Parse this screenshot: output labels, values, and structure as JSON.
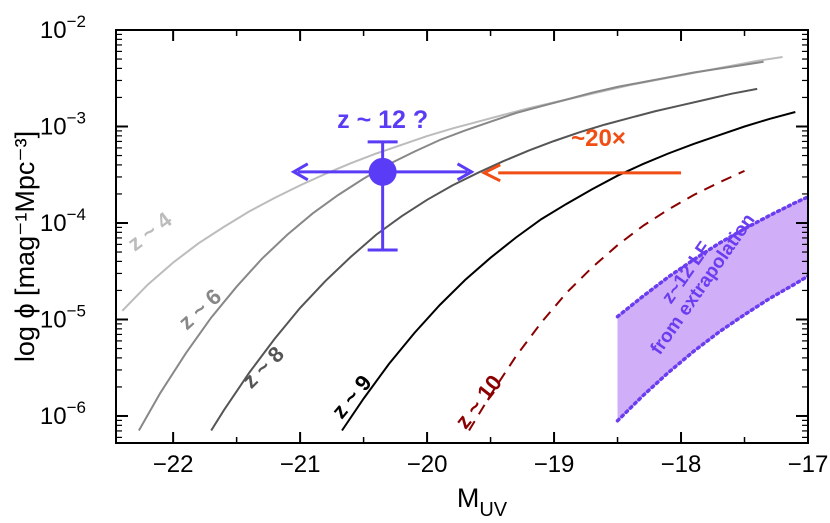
{
  "chart_data": {
    "type": "line",
    "title": "",
    "xlabel": "M",
    "xlabel_sub": "UV",
    "ylabel": "log ϕ [mag⁻¹Mpc⁻³]",
    "xlim": [
      -22.45,
      -17.0
    ],
    "ylim_log10": [
      -6.28,
      -2.0
    ],
    "y_log_scale": true,
    "grid": false,
    "legend": "none",
    "x_ticks": [
      {
        "value": -22,
        "label": "−22"
      },
      {
        "value": -21,
        "label": "−21"
      },
      {
        "value": -20,
        "label": "−20"
      },
      {
        "value": -19,
        "label": "−19"
      },
      {
        "value": -18,
        "label": "−18"
      },
      {
        "value": -17,
        "label": "−17"
      }
    ],
    "y_ticks": [
      {
        "exp": -2,
        "base": "10",
        "sup": "−2"
      },
      {
        "exp": -3,
        "base": "10",
        "sup": "−3"
      },
      {
        "exp": -4,
        "base": "10",
        "sup": "−4"
      },
      {
        "exp": -5,
        "base": "10",
        "sup": "−5"
      },
      {
        "exp": -6,
        "base": "10",
        "sup": "−6"
      }
    ],
    "series": [
      {
        "id": "z4",
        "label": "z ~ 4",
        "color": "#bcbcbc",
        "dash": "solid",
        "label_x": -22.15,
        "label_logy": -4.15,
        "label_angle": -37,
        "x": [
          -22.4,
          -22.2,
          -22.0,
          -21.8,
          -21.6,
          -21.4,
          -21.2,
          -21.0,
          -20.8,
          -20.6,
          -20.4,
          -20.2,
          -20.0,
          -19.8,
          -19.6,
          -19.4,
          -19.2,
          -19.0,
          -18.8,
          -18.6,
          -18.4,
          -18.2,
          -18.0,
          -17.8,
          -17.6,
          -17.4,
          -17.2
        ],
        "logy": [
          -4.91,
          -4.64,
          -4.41,
          -4.21,
          -4.04,
          -3.88,
          -3.74,
          -3.61,
          -3.49,
          -3.38,
          -3.28,
          -3.19,
          -3.1,
          -3.02,
          -2.95,
          -2.88,
          -2.81,
          -2.75,
          -2.69,
          -2.63,
          -2.57,
          -2.52,
          -2.47,
          -2.42,
          -2.37,
          -2.32,
          -2.28
        ]
      },
      {
        "id": "z6",
        "label": "z ~ 6",
        "color": "#888888",
        "dash": "solid",
        "label_x": -21.75,
        "label_logy": -4.95,
        "label_angle": -42,
        "x": [
          -22.27,
          -22.1,
          -21.9,
          -21.7,
          -21.5,
          -21.3,
          -21.1,
          -20.9,
          -20.7,
          -20.5,
          -20.3,
          -20.1,
          -19.9,
          -19.7,
          -19.5,
          -19.3,
          -19.1,
          -18.9,
          -18.7,
          -18.5,
          -18.3,
          -18.1,
          -17.9,
          -17.7,
          -17.5,
          -17.35
        ],
        "logy": [
          -6.15,
          -5.76,
          -5.35,
          -4.98,
          -4.66,
          -4.37,
          -4.12,
          -3.9,
          -3.71,
          -3.54,
          -3.39,
          -3.26,
          -3.14,
          -3.04,
          -2.95,
          -2.86,
          -2.79,
          -2.72,
          -2.65,
          -2.59,
          -2.54,
          -2.49,
          -2.44,
          -2.4,
          -2.36,
          -2.33
        ]
      },
      {
        "id": "z8",
        "label": "z ~ 8",
        "color": "#555555",
        "dash": "solid",
        "label_x": -21.25,
        "label_logy": -5.55,
        "label_angle": -45,
        "x": [
          -21.7,
          -21.6,
          -21.4,
          -21.2,
          -21.0,
          -20.8,
          -20.6,
          -20.4,
          -20.2,
          -20.0,
          -19.8,
          -19.6,
          -19.4,
          -19.2,
          -19.0,
          -18.8,
          -18.6,
          -18.4,
          -18.2,
          -18.0,
          -17.8,
          -17.6,
          -17.4
        ],
        "logy": [
          -6.15,
          -5.94,
          -5.55,
          -5.2,
          -4.88,
          -4.6,
          -4.35,
          -4.12,
          -3.93,
          -3.76,
          -3.61,
          -3.48,
          -3.36,
          -3.25,
          -3.15,
          -3.06,
          -2.98,
          -2.91,
          -2.84,
          -2.78,
          -2.72,
          -2.66,
          -2.61
        ]
      },
      {
        "id": "z9",
        "label": "z ~ 9",
        "color": "#000000",
        "dash": "solid",
        "label_x": -20.55,
        "label_logy": -5.85,
        "label_angle": -50,
        "x": [
          -20.67,
          -20.5,
          -20.3,
          -20.1,
          -19.9,
          -19.7,
          -19.5,
          -19.3,
          -19.1,
          -18.9,
          -18.7,
          -18.5,
          -18.3,
          -18.1,
          -17.9,
          -17.7,
          -17.5,
          -17.3,
          -17.1
        ],
        "logy": [
          -6.15,
          -5.82,
          -5.46,
          -5.14,
          -4.85,
          -4.59,
          -4.36,
          -4.15,
          -3.96,
          -3.8,
          -3.65,
          -3.51,
          -3.39,
          -3.28,
          -3.18,
          -3.09,
          -3.0,
          -2.92,
          -2.85
        ]
      },
      {
        "id": "z10",
        "label": "z ~ 10",
        "color": "#8b0000",
        "dash": "dashed",
        "label_x": -19.55,
        "label_logy": -5.9,
        "label_angle": -52,
        "x": [
          -19.67,
          -19.5,
          -19.3,
          -19.1,
          -18.9,
          -18.7,
          -18.5,
          -18.3,
          -18.1,
          -17.9,
          -17.7,
          -17.5
        ],
        "logy": [
          -6.15,
          -5.78,
          -5.38,
          -5.03,
          -4.72,
          -4.46,
          -4.23,
          -4.03,
          -3.86,
          -3.71,
          -3.58,
          -3.46
        ]
      }
    ],
    "shaded_band": {
      "label_line1": "z~12 LF",
      "label_line2": "from extrapolation",
      "fill": "#d1aff8",
      "edge": "#6a3df0",
      "x": [
        -18.5,
        -18.3,
        -18.1,
        -17.9,
        -17.7,
        -17.5,
        -17.3,
        -17.1,
        -17.0
      ],
      "upper_logy": [
        -4.97,
        -4.76,
        -4.56,
        -4.38,
        -4.21,
        -4.06,
        -3.92,
        -3.79,
        -3.73
      ],
      "lower_logy": [
        -6.05,
        -5.79,
        -5.55,
        -5.33,
        -5.13,
        -4.95,
        -4.78,
        -4.63,
        -4.55
      ],
      "label_x": -17.92,
      "label_logy": -4.55,
      "label_angle": -55
    },
    "point": {
      "label": "z ~ 12 ?",
      "color": "#5a3cf6",
      "x": -20.35,
      "logy": -3.47,
      "xerr": 0.7,
      "logy_upper": -3.16,
      "logy_lower": -4.28
    },
    "arrow": {
      "label": "~20×",
      "color": "#f04e14",
      "x_start": -18.0,
      "x_end": -19.55,
      "logy": -3.48,
      "label_x": -18.65,
      "label_logy": -3.2
    }
  }
}
